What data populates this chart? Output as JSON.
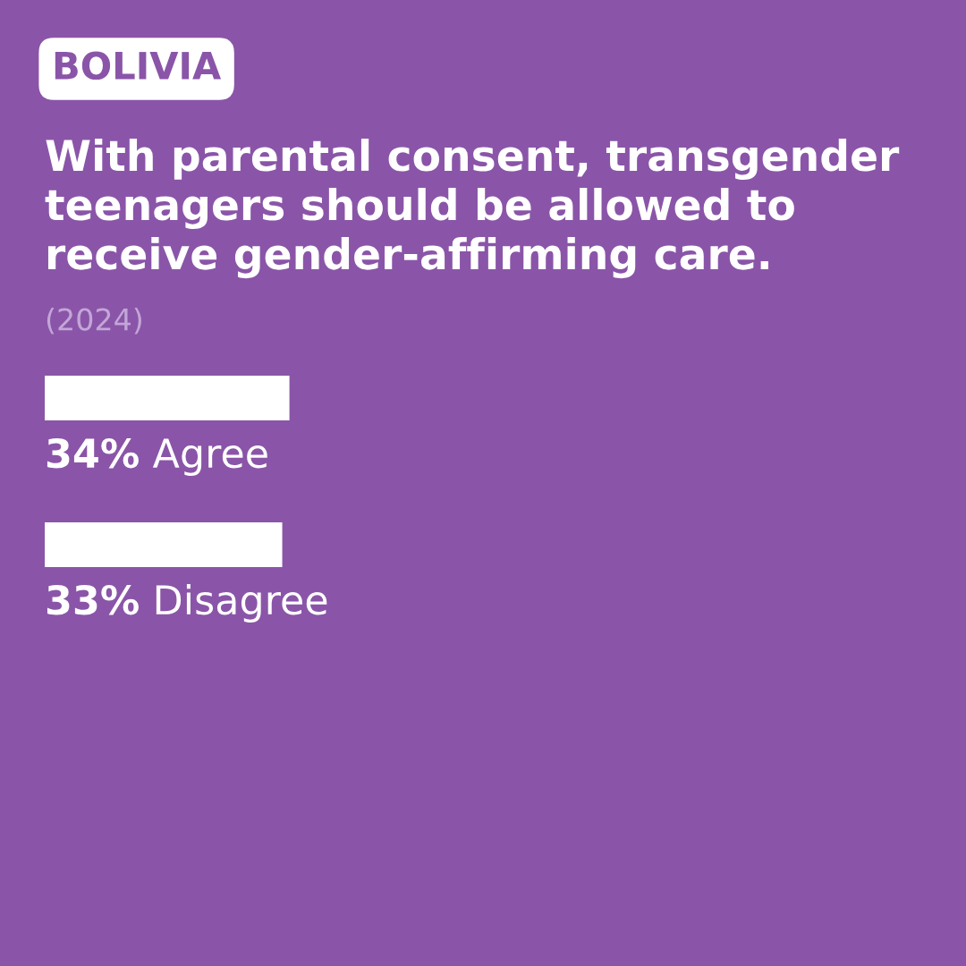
{
  "chart_data": {
    "type": "bar",
    "orientation": "horizontal",
    "title": "With parental consent, transgender teenagers should be allowed to receive gender-affirming care.",
    "annotations": [
      "BOLIVIA",
      "(2024)"
    ],
    "categories": [
      "Agree",
      "Disagree"
    ],
    "values": [
      34,
      33
    ],
    "value_labels": [
      "34%",
      "33%"
    ],
    "color": "#ffffff",
    "xlim": [
      0,
      128
    ],
    "tick_labels": false
  }
}
